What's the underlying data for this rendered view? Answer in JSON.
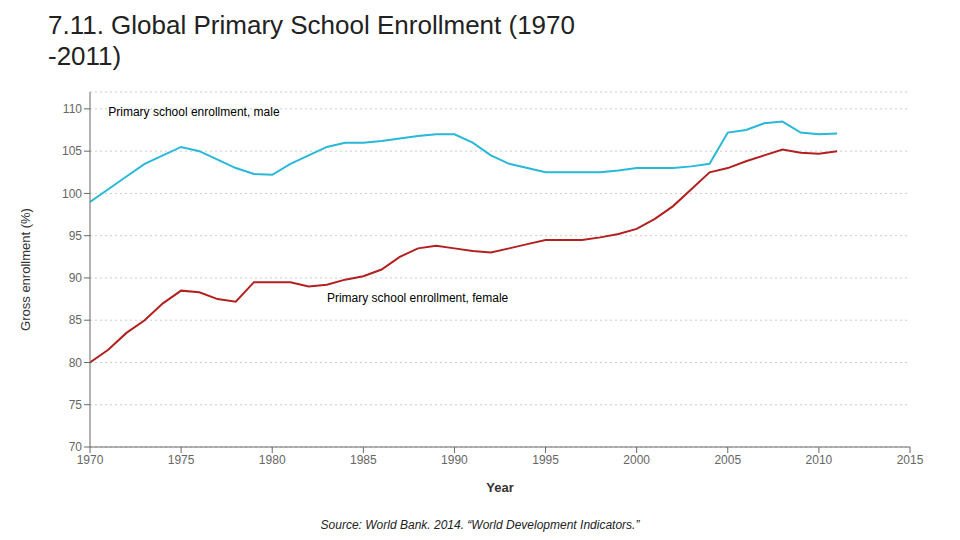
{
  "chart_data": {
    "type": "line",
    "title": "7.11. Global Primary School Enrollment (1970\n-2011)",
    "xlabel": "Year",
    "ylabel": "Gross enrollment (%)",
    "source": "Source: World Bank. 2014. “World Development Indicators.”",
    "x": [
      1970,
      1971,
      1972,
      1973,
      1974,
      1975,
      1976,
      1977,
      1978,
      1979,
      1980,
      1981,
      1982,
      1983,
      1984,
      1985,
      1986,
      1987,
      1988,
      1989,
      1990,
      1991,
      1992,
      1993,
      1994,
      1995,
      1996,
      1997,
      1998,
      1999,
      2000,
      2001,
      2002,
      2003,
      2004,
      2005,
      2006,
      2007,
      2008,
      2009,
      2010,
      2011
    ],
    "series": [
      {
        "color": "#29B8D8",
        "values": [
          99.0,
          100.5,
          102.0,
          103.5,
          104.5,
          105.5,
          105.0,
          104.0,
          103.0,
          102.3,
          102.2,
          103.5,
          104.5,
          105.5,
          106.0,
          106.0,
          106.2,
          106.5,
          106.8,
          107.0,
          107.0,
          106.0,
          104.5,
          103.5,
          103.0,
          102.5,
          102.5,
          102.5,
          102.5,
          102.7,
          103.0,
          103.0,
          103.0,
          103.2,
          103.5,
          107.2,
          107.5,
          108.3,
          108.5,
          107.2,
          107.0,
          107.1
        ]
      },
      {
        "color": "#B22020",
        "values": [
          80.0,
          81.5,
          83.5,
          85.0,
          87.0,
          88.5,
          88.3,
          87.5,
          87.2,
          89.5,
          89.5,
          89.5,
          89.0,
          89.2,
          89.8,
          90.2,
          91.0,
          92.5,
          93.5,
          93.8,
          93.5,
          93.2,
          93.0,
          93.5,
          94.0,
          94.5,
          94.5,
          94.5,
          94.8,
          95.2,
          95.8,
          97.0,
          98.5,
          100.5,
          102.5,
          103.0,
          103.8,
          104.5,
          105.2,
          104.8,
          104.7,
          105.0
        ]
      }
    ],
    "annotations": [
      {
        "text": "Primary school enrollment, male",
        "x": 1971,
        "y": 109.2
      },
      {
        "text": "Primary school enrollment, female",
        "x": 1983,
        "y": 87.2
      }
    ],
    "xlim": [
      1970,
      2015
    ],
    "xticks": [
      1970,
      1975,
      1980,
      1985,
      1990,
      1995,
      2000,
      2005,
      2010,
      2015
    ],
    "ylim": [
      70,
      112
    ],
    "yticks": [
      70,
      75,
      80,
      85,
      90,
      95,
      100,
      105,
      110
    ],
    "grid": "y"
  }
}
